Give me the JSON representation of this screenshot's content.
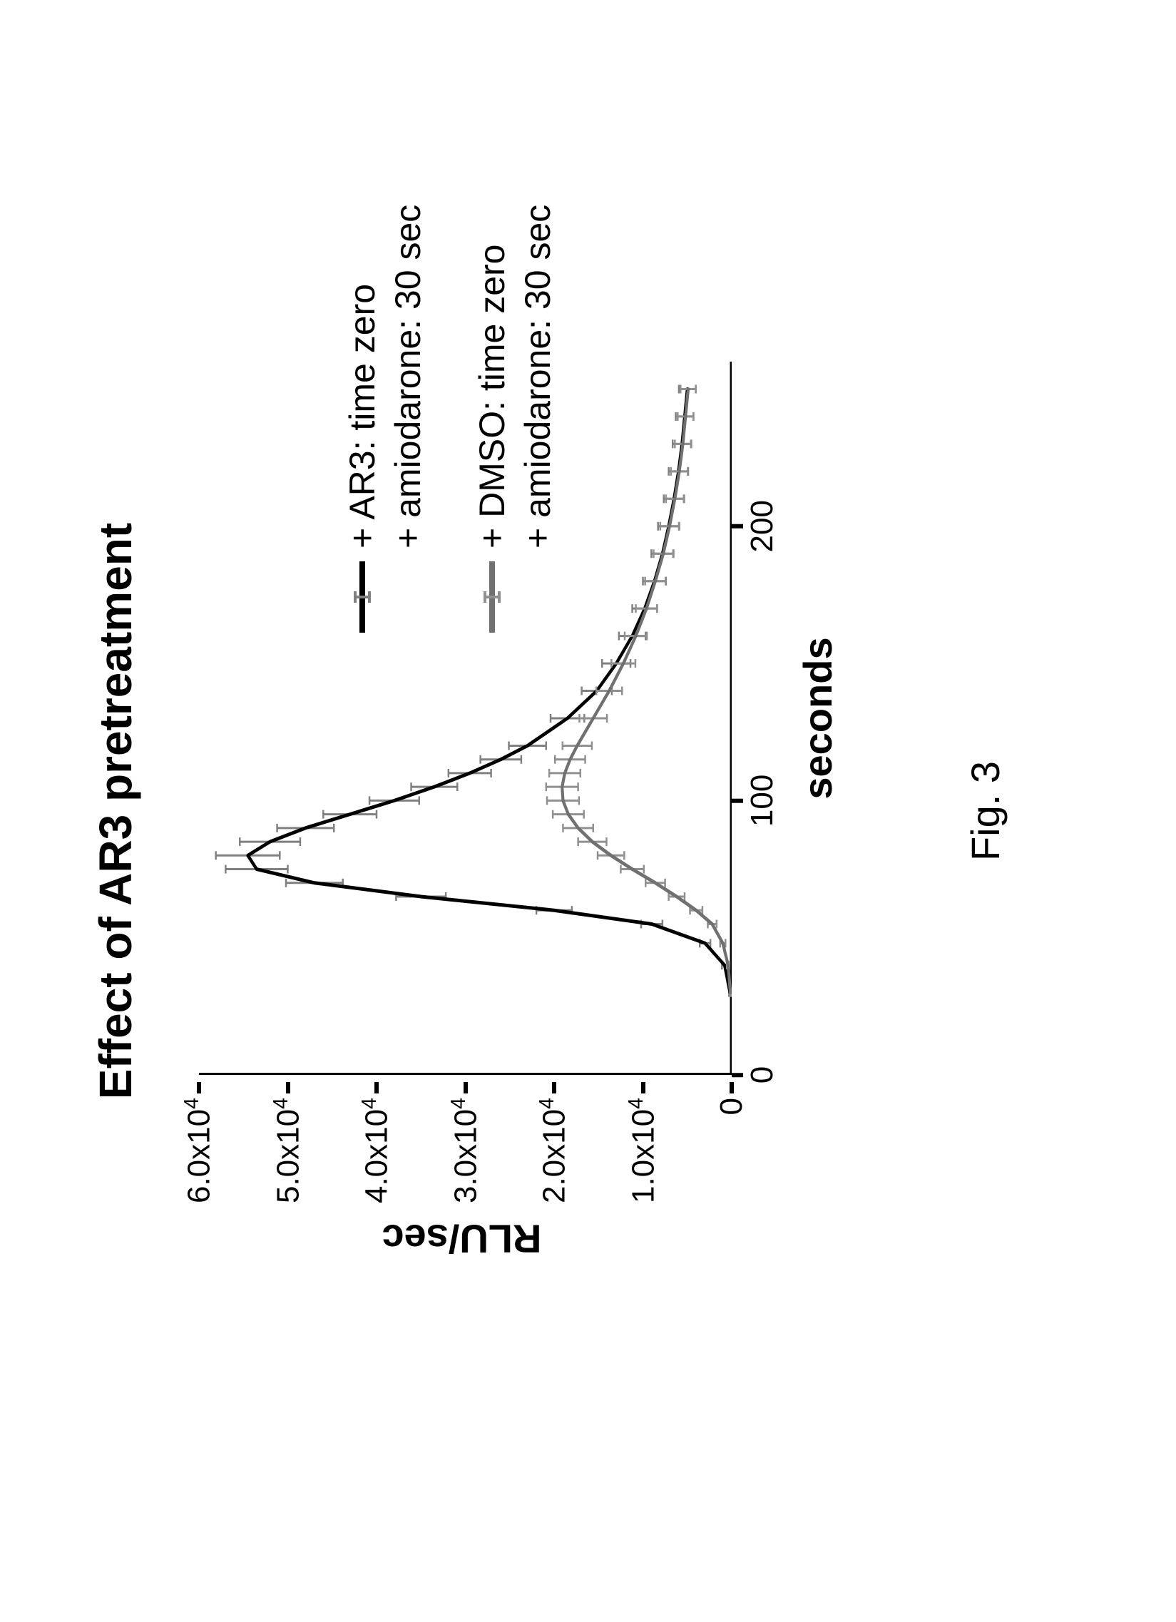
{
  "figure": {
    "caption": "Fig. 3",
    "rotation_deg": -90
  },
  "chart": {
    "type": "line",
    "title": "Effect of AR3 pretreatment",
    "title_fontsize": 64,
    "title_fontweight": 700,
    "xlabel": "seconds",
    "ylabel": "RLU/sec",
    "axis_label_fontsize": 56,
    "axis_label_fontweight": 700,
    "tick_fontsize": 44,
    "background_color": "#ffffff",
    "axis_color": "#000000",
    "axis_line_width": 6,
    "xlim": [
      0,
      260
    ],
    "ylim": [
      0,
      60000
    ],
    "xticks": [
      0,
      100,
      200
    ],
    "yticks": [
      0,
      10000,
      20000,
      30000,
      40000,
      50000,
      60000
    ],
    "ytick_labels": [
      "0",
      "1.0x10^4",
      "2.0x10^4",
      "3.0x10^4",
      "4.0x10^4",
      "5.0x10^4",
      "6.0x10^4"
    ],
    "axis_style": "L-shape",
    "series": [
      {
        "id": "ar3",
        "label": "+ AR3: time zero",
        "sublabel": "+ amiodarone: 30 sec",
        "color": "#000000",
        "line_width": 5,
        "marker": "errorbar",
        "error_color": "#808080",
        "error_cap_width": 12,
        "x": [
          30,
          40,
          48,
          55,
          60,
          65,
          70,
          75,
          80,
          85,
          90,
          95,
          100,
          105,
          110,
          115,
          120,
          130,
          140,
          150,
          160,
          170,
          180,
          190,
          200,
          210,
          220,
          230,
          240,
          250
        ],
        "y": [
          200,
          800,
          3000,
          9000,
          20000,
          35000,
          47000,
          53500,
          54500,
          52000,
          48000,
          43000,
          38000,
          33500,
          29500,
          26000,
          23000,
          18500,
          15200,
          13000,
          11200,
          9800,
          8700,
          7800,
          7100,
          6500,
          6000,
          5600,
          5300,
          5000
        ],
        "yerr": [
          100,
          300,
          600,
          1200,
          2000,
          2800,
          3200,
          3500,
          3600,
          3400,
          3200,
          3000,
          2800,
          2600,
          2400,
          2300,
          2100,
          1900,
          1700,
          1600,
          1500,
          1400,
          1300,
          1250,
          1200,
          1150,
          1100,
          1050,
          1000,
          950
        ]
      },
      {
        "id": "dmso",
        "label": "+ DMSO: time zero",
        "sublabel": "+ amiodarone: 30 sec",
        "color": "#707070",
        "line_width": 5,
        "marker": "errorbar",
        "error_color": "#909090",
        "error_cap_width": 12,
        "x": [
          30,
          40,
          48,
          55,
          60,
          65,
          70,
          75,
          80,
          85,
          90,
          95,
          100,
          105,
          110,
          115,
          120,
          130,
          140,
          150,
          160,
          170,
          180,
          190,
          200,
          210,
          220,
          230,
          240,
          250
        ],
        "y": [
          150,
          400,
          1000,
          2200,
          4000,
          6200,
          8600,
          11200,
          13600,
          15700,
          17300,
          18400,
          19000,
          19100,
          18800,
          18200,
          17400,
          15600,
          13800,
          12200,
          10800,
          9600,
          8600,
          7700,
          7000,
          6400,
          5900,
          5500,
          5200,
          4900
        ],
        "yerr": [
          80,
          150,
          300,
          500,
          700,
          900,
          1100,
          1300,
          1500,
          1600,
          1700,
          1750,
          1800,
          1800,
          1750,
          1700,
          1650,
          1550,
          1450,
          1350,
          1250,
          1200,
          1150,
          1100,
          1050,
          1000,
          950,
          900,
          880,
          860
        ]
      }
    ],
    "legend": {
      "position": "right",
      "fontsize": 50,
      "blocks": [
        {
          "series_id": "ar3",
          "swatch_color": "#000000"
        },
        {
          "series_id": "dmso",
          "swatch_color": "#707070"
        }
      ]
    }
  }
}
